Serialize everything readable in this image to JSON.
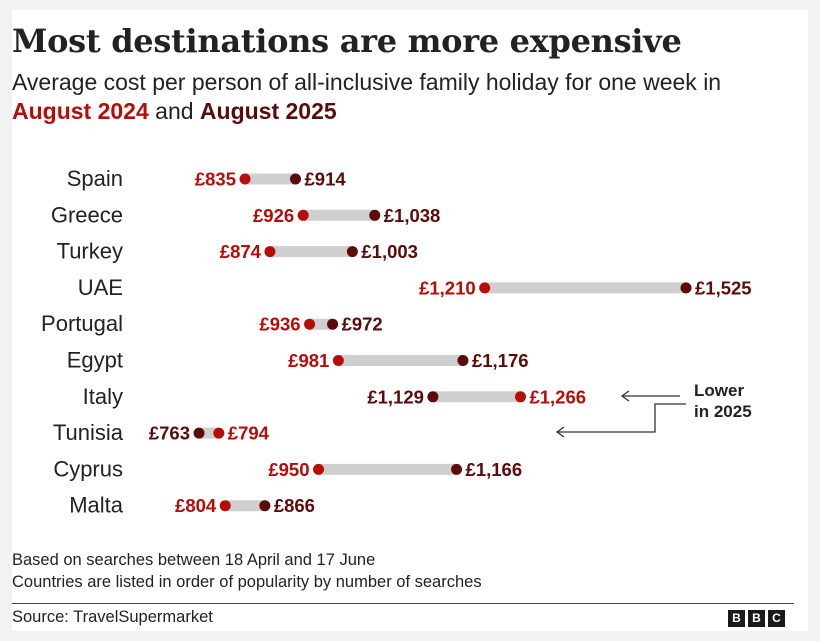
{
  "header": {
    "title": "Most destinations are more expensive",
    "subtitle_prefix": "Average cost per person of all-inclusive family holiday for one week in",
    "subtitle_mid": "and",
    "legend_2024": "August 2024",
    "legend_2025": "August 2025"
  },
  "colors": {
    "c2024": "#b80c09",
    "c2025": "#5c0a0a",
    "bar": "#cfcfcf",
    "text": "#222222"
  },
  "chart_data": {
    "type": "dumbbell",
    "title": "Most destinations are more expensive",
    "subtitle": "Average cost per person of all-inclusive family holiday for one week in August 2024 and August 2025",
    "unit": "GBP per person",
    "xlim": [
      700,
      1600
    ],
    "series": [
      {
        "name": "August 2024",
        "color_key": "c2024"
      },
      {
        "name": "August 2025",
        "color_key": "c2025"
      }
    ],
    "categories": [
      "Spain",
      "Greece",
      "Turkey",
      "UAE",
      "Portugal",
      "Egypt",
      "Italy",
      "Tunisia",
      "Cyprus",
      "Malta"
    ],
    "values_2024": [
      835,
      926,
      874,
      1210,
      936,
      981,
      1266,
      794,
      950,
      804
    ],
    "values_2025": [
      914,
      1038,
      1003,
      1525,
      972,
      1176,
      1129,
      763,
      1166,
      866
    ],
    "labels_2024": [
      "£835",
      "£926",
      "£874",
      "£1,210",
      "£936",
      "£981",
      "£1,266",
      "£794",
      "£950",
      "£804"
    ],
    "labels_2025": [
      "£914",
      "£1,038",
      "£1,003",
      "£1,525",
      "£972",
      "£1,176",
      "£1,129",
      "£763",
      "£1,166",
      "£866"
    ],
    "annotation": {
      "line1": "Lower",
      "line2": "in 2025",
      "targets": [
        "Italy",
        "Tunisia"
      ]
    }
  },
  "footer": {
    "note1": "Based on searches between 18 April and 17 June",
    "note2": "Countries are listed in order of popularity by number of searches",
    "source": "Source: TravelSupermarket",
    "logo_letters": [
      "B",
      "B",
      "C"
    ]
  }
}
